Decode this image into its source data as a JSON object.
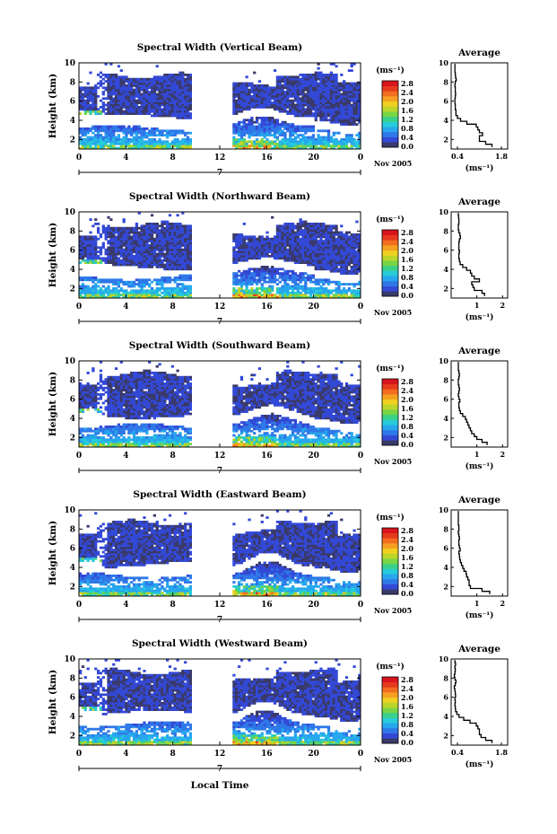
{
  "figure": {
    "xlabel": "Local Time",
    "ylabel": "Height (km)",
    "unit": "(ms⁻¹)",
    "day_label": "7",
    "date_label": "Nov 2005",
    "avg_title": "Average",
    "avg_xlabel": "(ms⁻¹)"
  },
  "colorbar": {
    "ticks": [
      "2.8",
      "2.4",
      "2.0",
      "1.6",
      "1.2",
      "0.8",
      "0.4",
      "0.0"
    ],
    "colors": [
      "#3a3a6a",
      "#3349d6",
      "#2f78e8",
      "#27a6ee",
      "#27cbd9",
      "#3ad08a",
      "#78d545",
      "#bcd52a",
      "#f0d020",
      "#f5a020",
      "#f26d1f",
      "#e63a1e",
      "#d8141c"
    ]
  },
  "chart_data": [
    {
      "type": "heatmap",
      "title": "Spectral Width (Vertical Beam)",
      "xlim": [
        0,
        24
      ],
      "ylim": [
        1,
        10
      ],
      "x_ticks": [
        "0",
        "4",
        "8",
        "12",
        "16",
        "20",
        "0"
      ],
      "y_ticks": [
        "2",
        "4",
        "6",
        "8",
        "10"
      ],
      "clim": [
        0.0,
        3.0
      ],
      "average": {
        "title": "Average",
        "x_ticks": [
          "0.4",
          "1.8"
        ],
        "xlim": [
          0.2,
          2.0
        ],
        "height": [
          1.2,
          1.5,
          1.8,
          2.1,
          2.4,
          2.7,
          3.0,
          3.3,
          3.6,
          3.9,
          4.2,
          4.5,
          4.8,
          5.1,
          5.4,
          5.7,
          6.0,
          6.3,
          6.6,
          6.9,
          7.2,
          7.5,
          7.8,
          8.1,
          8.4,
          8.7,
          9.0,
          9.3,
          9.6,
          9.9
        ],
        "value": [
          1.5,
          1.3,
          1.1,
          1.1,
          1.2,
          1.1,
          1.05,
          1.0,
          0.7,
          0.5,
          0.4,
          0.35,
          0.35,
          0.33,
          0.33,
          0.32,
          0.32,
          0.33,
          0.34,
          0.33,
          0.33,
          0.32,
          0.33,
          0.36,
          0.34,
          0.33,
          0.32,
          0.32,
          0.32,
          0.32
        ]
      }
    },
    {
      "type": "heatmap",
      "title": "Spectral Width (Northward Beam)",
      "xlim": [
        0,
        24
      ],
      "ylim": [
        1,
        10
      ],
      "x_ticks": [
        "0",
        "4",
        "8",
        "12",
        "16",
        "20",
        "0"
      ],
      "y_ticks": [
        "2",
        "4",
        "6",
        "8",
        "10"
      ],
      "clim": [
        0.0,
        3.0
      ],
      "average": {
        "title": "Average",
        "x_ticks": [
          "1",
          "2"
        ],
        "xlim": [
          0,
          2.2
        ],
        "height": [
          1.2,
          1.5,
          1.8,
          2.1,
          2.4,
          2.7,
          3.0,
          3.3,
          3.6,
          3.9,
          4.2,
          4.5,
          4.8,
          5.1,
          5.4,
          5.7,
          6.0,
          6.3,
          6.6,
          6.9,
          7.2,
          7.5,
          7.8,
          8.1,
          8.4,
          8.7,
          9.0,
          9.3,
          9.6,
          9.9
        ],
        "value": [
          1.3,
          1.2,
          0.9,
          0.85,
          0.8,
          1.1,
          0.9,
          0.8,
          0.75,
          0.6,
          0.45,
          0.35,
          0.32,
          0.3,
          0.3,
          0.32,
          0.3,
          0.3,
          0.3,
          0.32,
          0.36,
          0.34,
          0.3,
          0.28,
          0.28,
          0.3,
          0.3,
          0.29,
          0.28,
          0.28
        ]
      }
    },
    {
      "type": "heatmap",
      "title": "Spectral Width (Southward Beam)",
      "xlim": [
        0,
        24
      ],
      "ylim": [
        1,
        10
      ],
      "x_ticks": [
        "0",
        "4",
        "8",
        "12",
        "16",
        "20",
        "0"
      ],
      "y_ticks": [
        "2",
        "4",
        "6",
        "8",
        "10"
      ],
      "clim": [
        0.0,
        3.0
      ],
      "average": {
        "title": "Average",
        "x_ticks": [
          "1",
          "2"
        ],
        "xlim": [
          0,
          2.2
        ],
        "height": [
          1.2,
          1.5,
          1.8,
          2.1,
          2.4,
          2.7,
          3.0,
          3.3,
          3.6,
          3.9,
          4.2,
          4.5,
          4.8,
          5.1,
          5.4,
          5.7,
          6.0,
          6.3,
          6.6,
          6.9,
          7.2,
          7.5,
          7.8,
          8.1,
          8.4,
          8.7,
          9.0,
          9.3,
          9.6,
          9.9
        ],
        "value": [
          1.4,
          1.2,
          1.0,
          0.9,
          0.8,
          0.75,
          0.7,
          0.65,
          0.6,
          0.55,
          0.45,
          0.36,
          0.32,
          0.3,
          0.3,
          0.34,
          0.3,
          0.28,
          0.3,
          0.32,
          0.3,
          0.28,
          0.28,
          0.3,
          0.32,
          0.3,
          0.28,
          0.28,
          0.28,
          0.28
        ]
      }
    },
    {
      "type": "heatmap",
      "title": "Spectral Width (Eastward Beam)",
      "xlim": [
        0,
        24
      ],
      "ylim": [
        1,
        10
      ],
      "x_ticks": [
        "0",
        "4",
        "8",
        "12",
        "16",
        "20",
        "0"
      ],
      "y_ticks": [
        "2",
        "4",
        "6",
        "8",
        "10"
      ],
      "clim": [
        0.0,
        3.0
      ],
      "average": {
        "title": "Average",
        "x_ticks": [
          "1",
          "2"
        ],
        "xlim": [
          0,
          2.2
        ],
        "height": [
          1.2,
          1.5,
          1.8,
          2.1,
          2.4,
          2.7,
          3.0,
          3.3,
          3.6,
          3.9,
          4.2,
          4.5,
          4.8,
          5.1,
          5.4,
          5.7,
          6.0,
          6.3,
          6.6,
          6.9,
          7.2,
          7.5,
          7.8,
          8.1,
          8.4,
          8.7,
          9.0,
          9.3,
          9.6,
          9.9
        ],
        "value": [
          1.5,
          1.2,
          0.75,
          0.7,
          0.7,
          0.65,
          0.6,
          0.58,
          0.5,
          0.45,
          0.4,
          0.36,
          0.33,
          0.32,
          0.3,
          0.35,
          0.32,
          0.3,
          0.3,
          0.32,
          0.3,
          0.28,
          0.3,
          0.3,
          0.28,
          0.28,
          0.28,
          0.28,
          0.28,
          0.28
        ]
      }
    },
    {
      "type": "heatmap",
      "title": "Spectral Width (Westward Beam)",
      "xlim": [
        0,
        24
      ],
      "ylim": [
        1,
        10
      ],
      "x_ticks": [
        "0",
        "4",
        "8",
        "12",
        "16",
        "20",
        "0"
      ],
      "y_ticks": [
        "2",
        "4",
        "6",
        "8",
        "10"
      ],
      "clim": [
        0.0,
        3.0
      ],
      "average": {
        "title": "Average",
        "x_ticks": [
          "0.4",
          "1.8"
        ],
        "xlim": [
          0.2,
          2.0
        ],
        "height": [
          1.2,
          1.5,
          1.8,
          2.1,
          2.4,
          2.7,
          3.0,
          3.3,
          3.6,
          3.9,
          4.2,
          4.5,
          4.8,
          5.1,
          5.4,
          5.7,
          6.0,
          6.3,
          6.6,
          6.9,
          7.2,
          7.5,
          7.8,
          8.1,
          8.4,
          8.7,
          9.0,
          9.3,
          9.6,
          9.9
        ],
        "value": [
          1.5,
          1.3,
          1.15,
          1.1,
          1.1,
          1.05,
          1.0,
          0.8,
          0.6,
          0.45,
          0.38,
          0.34,
          0.33,
          0.32,
          0.33,
          0.32,
          0.34,
          0.33,
          0.32,
          0.3,
          0.33,
          0.35,
          0.32,
          0.3,
          0.32,
          0.33,
          0.32,
          0.34,
          0.32,
          0.32
        ]
      }
    }
  ]
}
